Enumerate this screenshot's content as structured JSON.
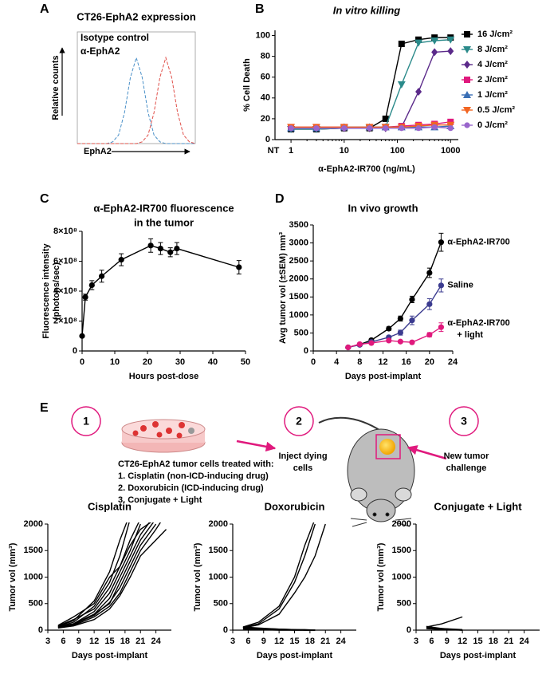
{
  "chart_data": [
    {
      "type": "line",
      "panel": "A",
      "title": "CT26-EphA2 expression",
      "ylabel": "Relative counts",
      "xlabel": "EphA2",
      "frame": true,
      "legend": "inline-top-left",
      "line_style": "dashed",
      "x": [
        0,
        5,
        10,
        15,
        20,
        25,
        30,
        35,
        40,
        45,
        50,
        55,
        60,
        65,
        70,
        75,
        80,
        85,
        90,
        95,
        100
      ],
      "xlim": [
        0,
        100
      ],
      "ylim": [
        0,
        130
      ],
      "series": [
        {
          "name": "Isotype control",
          "color": "#4a90c8",
          "values": [
            0,
            0,
            0,
            0,
            0,
            0,
            2,
            10,
            36,
            77,
            100,
            77,
            36,
            10,
            2,
            0,
            0,
            0,
            0,
            0,
            0
          ]
        },
        {
          "name": "α-EphA2",
          "color": "#e0504a",
          "values": [
            0,
            0,
            0,
            0,
            0,
            0,
            0,
            0,
            0,
            0,
            0,
            2,
            10,
            36,
            77,
            100,
            77,
            36,
            10,
            2,
            0
          ]
        }
      ]
    },
    {
      "type": "line",
      "panel": "B",
      "title": "In vitro killing",
      "title_italic": true,
      "ylabel": "% Cell Death",
      "xlabel": "α-EphA2-IR700 (ng/mL)",
      "log_x": true,
      "legend": "right-outside",
      "x_extra_label": "NT",
      "x": [
        1,
        3,
        10,
        30,
        60,
        120,
        250,
        500,
        1000
      ],
      "xlim": [
        0.5,
        1400
      ],
      "xticks": [
        1,
        10,
        100,
        1000
      ],
      "ylim": [
        0,
        105
      ],
      "yticks": [
        0,
        20,
        40,
        60,
        80,
        100
      ],
      "series": [
        {
          "name": "16 J/cm²",
          "color": "#000000",
          "marker": "square",
          "values": [
            10,
            10,
            11,
            11,
            20,
            92,
            96,
            98,
            98
          ]
        },
        {
          "name": "8 J/cm²",
          "color": "#2a8a8a",
          "marker": "triangle-down",
          "values": [
            10,
            10,
            11,
            11,
            12,
            53,
            93,
            95,
            96
          ]
        },
        {
          "name": "4 J/cm²",
          "color": "#5b2a8a",
          "marker": "diamond",
          "values": [
            11,
            11,
            11,
            11,
            11,
            12,
            46,
            84,
            85
          ]
        },
        {
          "name": "2 J/cm²",
          "color": "#e0197d",
          "marker": "square",
          "values": [
            12,
            12,
            12,
            12,
            12,
            13,
            14,
            15,
            17
          ]
        },
        {
          "name": "1 J/cm²",
          "color": "#3a6fb5",
          "marker": "triangle",
          "values": [
            11,
            11,
            12,
            12,
            12,
            12,
            12,
            12,
            13
          ]
        },
        {
          "name": "0.5 J/cm²",
          "color": "#f26522",
          "marker": "triangle-down",
          "values": [
            12,
            12,
            12,
            12,
            12,
            12,
            13,
            14,
            14
          ]
        },
        {
          "name": "0 J/cm²",
          "color": "#9966cc",
          "marker": "circle",
          "values": [
            11,
            11,
            11,
            11,
            11,
            11,
            11,
            12,
            11
          ]
        }
      ]
    },
    {
      "type": "line",
      "panel": "C",
      "title_lines": [
        "α-EphA2-IR700 fluorescence",
        "in the tumor"
      ],
      "ylabel_lines": [
        "Fluorescence intensity",
        "(photons/sec)"
      ],
      "xlabel": "Hours post-dose",
      "x": [
        0,
        1,
        3,
        6,
        12,
        21,
        24,
        27,
        29,
        48
      ],
      "xlim": [
        0,
        50
      ],
      "xticks": [
        0,
        10,
        20,
        30,
        40,
        50
      ],
      "ylim": [
        0,
        800000000
      ],
      "yticks": [
        0,
        {
          "value": 200000000,
          "label": "2×10⁸"
        },
        {
          "value": 400000000,
          "label": "4×10⁸"
        },
        {
          "value": 600000000,
          "label": "6×10⁸"
        },
        {
          "value": 800000000,
          "label": "8×10⁸"
        }
      ],
      "series": [
        {
          "color": "#000000",
          "marker": "circle",
          "values": [
            100000000,
            360000000,
            440000000,
            500000000,
            610000000,
            705000000,
            685000000,
            660000000,
            685000000,
            560000000
          ],
          "errors": [
            0,
            20000000,
            30000000,
            40000000,
            40000000,
            45000000,
            40000000,
            30000000,
            40000000,
            45000000
          ]
        }
      ]
    },
    {
      "type": "line",
      "panel": "D",
      "title": "In vivo growth",
      "ylabel": "Avg tumor vol (±SEM) mm³",
      "xlabel": "Days post-implant",
      "legend": "line-end",
      "x": [
        6,
        8,
        10,
        13,
        15,
        17,
        20,
        22
      ],
      "xlim": [
        0,
        24
      ],
      "xticks": [
        0,
        4,
        8,
        12,
        16,
        20,
        24
      ],
      "ylim": [
        0,
        3500
      ],
      "yticks": [
        0,
        500,
        1000,
        1500,
        2000,
        2500,
        3000,
        3500
      ],
      "series": [
        {
          "name_lines": [
            "α-EphA2-IR700"
          ],
          "color": "#000000",
          "marker": "circle",
          "values": [
            100,
            180,
            300,
            620,
            900,
            1430,
            2170,
            3020
          ],
          "errors": [
            20,
            30,
            40,
            50,
            70,
            90,
            130,
            250
          ]
        },
        {
          "name_lines": [
            "Saline"
          ],
          "color": "#3b3b8f",
          "marker": "circle",
          "values": [
            100,
            170,
            250,
            380,
            510,
            850,
            1300,
            1820
          ],
          "errors": [
            20,
            20,
            30,
            40,
            70,
            120,
            150,
            180
          ]
        },
        {
          "name_lines": [
            "α-EphA2-IR700",
            "+ light"
          ],
          "color": "#e0197d",
          "marker": "circle",
          "values": [
            100,
            190,
            220,
            290,
            260,
            240,
            450,
            660
          ],
          "errors": [
            20,
            30,
            30,
            40,
            30,
            40,
            60,
            120
          ]
        }
      ]
    },
    {
      "type": "line",
      "title": "Cisplatin",
      "ylabel": "Tumor vol (mm³)",
      "xlabel": "Days post-implant",
      "x": [
        5,
        8,
        12,
        15,
        17,
        19,
        21,
        24,
        26
      ],
      "xlim": [
        3,
        27
      ],
      "xticks": [
        3,
        6,
        9,
        12,
        15,
        18,
        21,
        24
      ],
      "ylim": [
        0,
        2000
      ],
      "yticks": [
        0,
        500,
        1000,
        1500,
        2000
      ],
      "series": [
        {
          "color": "#000000",
          "values": [
            60,
            150,
            450,
            900,
            1400,
            2100,
            null,
            null,
            null
          ]
        },
        {
          "color": "#000000",
          "values": [
            70,
            180,
            550,
            1100,
            1700,
            2200,
            null,
            null,
            null
          ]
        },
        {
          "color": "#000000",
          "values": [
            50,
            120,
            350,
            700,
            1100,
            1500,
            2000,
            null,
            null
          ]
        },
        {
          "color": "#000000",
          "values": [
            80,
            200,
            400,
            800,
            1200,
            1600,
            1900,
            2100,
            null
          ]
        },
        {
          "color": "#000000",
          "values": [
            60,
            100,
            300,
            500,
            900,
            1300,
            1700,
            2100,
            null
          ]
        },
        {
          "color": "#000000",
          "values": [
            50,
            90,
            250,
            450,
            700,
            1100,
            1500,
            1900,
            2200
          ]
        },
        {
          "color": "#000000",
          "values": [
            70,
            120,
            300,
            600,
            1000,
            1400,
            1800,
            2200,
            null
          ]
        },
        {
          "color": "#000000",
          "values": [
            40,
            80,
            200,
            400,
            650,
            1000,
            1400,
            1700,
            1900
          ]
        },
        {
          "color": "#000000",
          "values": [
            60,
            110,
            280,
            520,
            800,
            1200,
            1600,
            2000,
            null
          ]
        },
        {
          "color": "#000000",
          "values": [
            90,
            250,
            500,
            1000,
            1200,
            1700,
            2100,
            null,
            null
          ]
        }
      ]
    },
    {
      "type": "line",
      "title": "Doxorubicin",
      "ylabel": "Tumor vol (mm³)",
      "xlabel": "Days post-implant",
      "x": [
        5,
        8,
        12,
        15,
        17,
        19,
        21,
        24,
        26
      ],
      "xlim": [
        3,
        27
      ],
      "xticks": [
        3,
        6,
        9,
        12,
        15,
        18,
        21,
        24
      ],
      "ylim": [
        0,
        2000
      ],
      "yticks": [
        0,
        500,
        1000,
        1500,
        2000
      ],
      "series": [
        {
          "color": "#000000",
          "values": [
            60,
            150,
            450,
            1000,
            1600,
            2100,
            null,
            null,
            null
          ]
        },
        {
          "color": "#000000",
          "values": [
            50,
            120,
            400,
            900,
            1400,
            2000,
            null,
            null,
            null
          ]
        },
        {
          "color": "#000000",
          "values": [
            40,
            100,
            300,
            700,
            1000,
            1400,
            2000,
            null,
            null
          ]
        },
        {
          "color": "#000000",
          "values": [
            30,
            20,
            10,
            0,
            0,
            0,
            null,
            null,
            null
          ]
        },
        {
          "color": "#000000",
          "values": [
            40,
            30,
            20,
            10,
            0,
            0,
            null,
            null,
            null
          ]
        },
        {
          "color": "#000000",
          "values": [
            60,
            40,
            20,
            10,
            10,
            0,
            null,
            null,
            null
          ]
        },
        {
          "color": "#000000",
          "values": [
            20,
            10,
            0,
            0,
            0,
            0,
            null,
            null,
            null
          ]
        }
      ]
    },
    {
      "type": "line",
      "title": "Conjugate + Light",
      "ylabel": "Tumor vol (mm³)",
      "xlabel": "Days post-implant",
      "x": [
        5,
        8,
        12,
        15,
        17,
        19,
        21,
        24,
        26
      ],
      "xlim": [
        3,
        27
      ],
      "xticks": [
        3,
        6,
        9,
        12,
        15,
        18,
        21,
        24
      ],
      "ylim": [
        0,
        2000
      ],
      "yticks": [
        0,
        500,
        1000,
        1500,
        2000
      ],
      "series": [
        {
          "color": "#000000",
          "values": [
            60,
            120,
            250,
            null,
            null,
            null,
            null,
            null,
            null
          ]
        },
        {
          "color": "#000000",
          "values": [
            50,
            30,
            0,
            null,
            null,
            null,
            null,
            null,
            null
          ]
        },
        {
          "color": "#000000",
          "values": [
            40,
            20,
            0,
            null,
            null,
            null,
            null,
            null,
            null
          ]
        },
        {
          "color": "#000000",
          "values": [
            30,
            10,
            0,
            null,
            null,
            null,
            null,
            null,
            null
          ]
        },
        {
          "color": "#000000",
          "values": [
            70,
            30,
            10,
            null,
            null,
            null,
            null,
            null,
            null
          ]
        }
      ]
    }
  ],
  "diagram": {
    "panel": "E",
    "steps": [
      "1",
      "2",
      "3"
    ],
    "treatment_lines": [
      "CT26-EphA2 tumor cells treated with:",
      "1. Cisplatin (non-ICD-inducing drug)",
      "2. Doxorubicin (ICD-inducing drug)",
      "3. Conjugate + Light"
    ],
    "inject_lines": [
      "Inject dying",
      "cells"
    ],
    "challenge_lines": [
      "New tumor",
      "challenge"
    ]
  }
}
